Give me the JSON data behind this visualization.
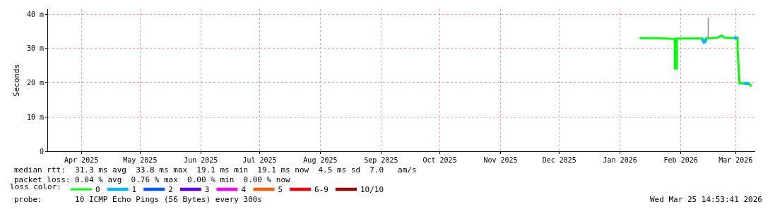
{
  "chart_data": {
    "type": "line",
    "ylabel": "Seconds",
    "legend_title": "loss color:",
    "xlim": [
      "2025-03-15",
      "2026-03-11"
    ],
    "xticks": [
      {
        "value": "2025-04-01",
        "label": "Apr 2025"
      },
      {
        "value": "2025-05-01",
        "label": "May 2025"
      },
      {
        "value": "2025-06-01",
        "label": "Jun 2025"
      },
      {
        "value": "2025-07-01",
        "label": "Jul 2025"
      },
      {
        "value": "2025-08-01",
        "label": "Aug 2025"
      },
      {
        "value": "2025-09-01",
        "label": "Sep 2025"
      },
      {
        "value": "2025-10-01",
        "label": "Oct 2025"
      },
      {
        "value": "2025-11-01",
        "label": "Nov 2025"
      },
      {
        "value": "2025-12-01",
        "label": "Dec 2025"
      },
      {
        "value": "2026-01-01",
        "label": "Jan 2026"
      },
      {
        "value": "2026-02-01",
        "label": "Feb 2026"
      },
      {
        "value": "2026-03-01",
        "label": "Mar 2026"
      }
    ],
    "ylim": [
      0,
      41.5
    ],
    "yticks": [
      0,
      {
        "value": 10,
        "label": "10 m"
      },
      {
        "value": 20,
        "label": "20 m"
      },
      {
        "value": 30,
        "label": "30 m"
      },
      {
        "value": 40,
        "label": "40 m"
      }
    ],
    "grid": true,
    "legend": "bottom",
    "marker": "none",
    "line_style": "solid",
    "series": [
      {
        "color": "#888888",
        "x": [
          "2026-02-15",
          "2026-02-15"
        ],
        "values": [
          33,
          39
        ]
      },
      {
        "name": "0",
        "color": "#00ff00",
        "x": [
          "2026-01-11",
          "2026-01-20",
          "2026-01-29",
          "2026-01-29",
          "2026-01-30",
          "2026-01-30",
          "2026-02-05",
          "2026-02-12",
          "2026-02-13",
          "2026-02-14",
          "2026-02-16",
          "2026-02-20",
          "2026-02-22",
          "2026-02-23",
          "2026-02-26",
          "2026-03-02",
          "2026-03-02",
          "2026-03-03",
          "2026-03-04",
          "2026-03-07",
          "2026-03-08",
          "2026-03-09"
        ],
        "values": [
          33.0,
          33.0,
          32.8,
          24.2,
          24.2,
          32.9,
          32.9,
          32.9,
          31.7,
          33.0,
          33.0,
          33.2,
          33.8,
          33.2,
          33.1,
          33.1,
          29.8,
          19.8,
          19.9,
          19.8,
          19.8,
          18.9
        ]
      },
      {
        "name": "1",
        "color": "#00b8ff",
        "x": [
          "2026-02-12",
          "2026-02-13",
          "2026-02-14",
          null,
          "2026-02-28",
          "2026-03-02",
          null,
          "2026-03-05",
          "2026-03-08"
        ],
        "values": [
          32.8,
          31.7,
          32.8,
          null,
          33.1,
          33.1,
          null,
          19.8,
          19.8
        ]
      },
      {
        "name": "2",
        "color": "#0059ff"
      },
      {
        "name": "3",
        "color": "#5e00ff"
      },
      {
        "name": "4",
        "color": "#ff00ff"
      },
      {
        "name": "5",
        "color": "#ff5e00"
      },
      {
        "name": "6-9",
        "color": "#ff0000"
      },
      {
        "name": "10/10",
        "color": "#a10000"
      }
    ],
    "annotations": [
      "median rtt:  31.3 ms avg  33.8 ms max  19.1 ms min  19.1 ms now  4.5 ms sd  7.0   am/s",
      "packet loss: 0.04 % avg  0.76 % max  0.00 % min  0.00 % now",
      "probe:       10 ICMP Echo Pings (56 Bytes) every 300s",
      "Wed Mar 25 14:53:41 2026"
    ]
  }
}
